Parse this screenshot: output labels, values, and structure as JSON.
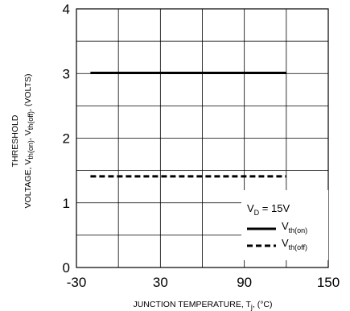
{
  "chart_data": {
    "type": "line",
    "xlim": [
      -30,
      150
    ],
    "ylim": [
      0,
      4
    ],
    "x_ticks": [
      -30,
      30,
      90,
      150
    ],
    "y_ticks": [
      0,
      1,
      2,
      3,
      4
    ],
    "x_tick_labels": [
      "-30",
      "30",
      "90",
      "150"
    ],
    "y_tick_labels": [
      "0",
      "1",
      "2",
      "3",
      "4"
    ],
    "grid": true,
    "xlabel": {
      "main": "JUNCTION TEMPERATURE, T",
      "sub": "j",
      "tail": ", (°C)"
    },
    "ylabel": {
      "line1": "THRESHOLD",
      "line2_parts": [
        {
          "text": "VOLTAGE, V",
          "sub": false
        },
        {
          "text": "th(on)",
          "sub": true
        },
        {
          "text": ", V",
          "sub": false
        },
        {
          "text": "th(off)",
          "sub": true
        },
        {
          "text": ", (VOLTS)",
          "sub": false
        }
      ]
    },
    "legend_title": {
      "main": "V",
      "sub": "D",
      "tail": " = 15V"
    },
    "legend_placement": "bottom-right",
    "series": [
      {
        "name": "V",
        "name_sub": "th(on)",
        "style": "solid",
        "color": "#000000",
        "x": [
          -20,
          120
        ],
        "y": [
          3.01,
          3.01
        ]
      },
      {
        "name": "V",
        "name_sub": "th(off)",
        "style": "dashed",
        "color": "#000000",
        "x": [
          -20,
          120
        ],
        "y": [
          1.41,
          1.41
        ]
      }
    ]
  }
}
